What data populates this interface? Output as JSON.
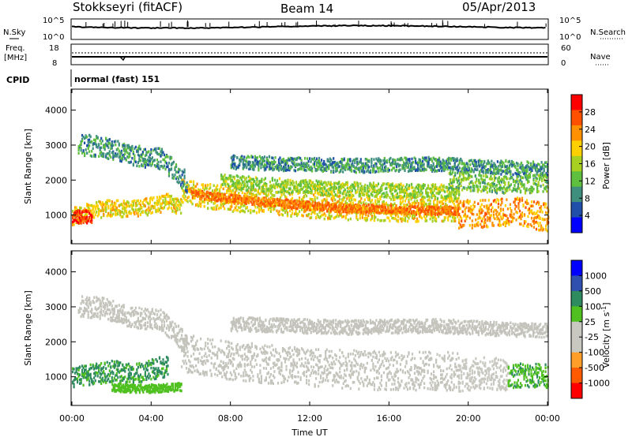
{
  "header": {
    "station": "Stokkseyri (fitACF)",
    "beam": "Beam 14",
    "date": "05/Apr/2013"
  },
  "noise_panel": {
    "left_label": "N.Sky",
    "right_label": "N.Search",
    "left_ticks": [
      "10^5",
      "10^0"
    ],
    "right_ticks": [
      "10^5",
      "10^0"
    ]
  },
  "freq_panel": {
    "left_label_1": "Freq.",
    "left_label_2": "[MHz]",
    "right_label": "Nave",
    "left_ticks": [
      "18",
      "8"
    ],
    "right_ticks": [
      "60",
      "0"
    ]
  },
  "cpid": {
    "label": "CPID",
    "text": "normal (fast) 151"
  },
  "colors": {
    "power_scale": [
      "#0000ff",
      "#1f4fa8",
      "#3f8f7f",
      "#5fbf3f",
      "#a8d020",
      "#ffd000",
      "#ff9000",
      "#ff5000",
      "#ff0000"
    ],
    "velocity_scale": [
      "#ff0000",
      "#ff5a00",
      "#ff9f2a",
      "#c8c8c0",
      "#c8c8c0",
      "#4fc020",
      "#2e8b5f",
      "#3050b0",
      "#0000ff"
    ],
    "power_band": "#30a060",
    "power_core": "#ff8000",
    "gray_echo": "#c4c4bc"
  },
  "chart_data": [
    {
      "type": "heatmap",
      "name": "power",
      "xlabel": "",
      "ylabel": "Slant Range [km]",
      "xlim": [
        0,
        24
      ],
      "ylim": [
        180,
        4600
      ],
      "yticks": [
        "1000",
        "2000",
        "3000",
        "4000"
      ],
      "ytick_values": [
        1000,
        2000,
        3000,
        4000
      ],
      "colorbar": {
        "label": "Power [dB]",
        "ticks": [
          "4",
          "8",
          "12",
          "16",
          "20",
          "24",
          "28"
        ],
        "tick_values": [
          4,
          8,
          12,
          16,
          20,
          24,
          28
        ],
        "range": [
          0,
          30
        ]
      },
      "bands": [
        {
          "x": [
            0,
            0.3,
            1,
            2,
            3,
            4,
            4.8,
            5.5
          ],
          "range": [
            950,
            1000,
            1100,
            1200,
            1150,
            1250,
            1350,
            1200
          ],
          "width": 250,
          "level": 18
        },
        {
          "x": [
            0,
            0.5,
            1
          ],
          "range": [
            950,
            950,
            950
          ],
          "width": 200,
          "level": 28
        },
        {
          "x": [
            5.5,
            6.5,
            8,
            10,
            12,
            14,
            16,
            18,
            19.5
          ],
          "range": [
            1700,
            1550,
            1450,
            1350,
            1250,
            1200,
            1150,
            1150,
            1150
          ],
          "width": 350,
          "level": 18
        },
        {
          "x": [
            6,
            8,
            10,
            12,
            14,
            16,
            18,
            19.5
          ],
          "range": [
            1600,
            1450,
            1350,
            1250,
            1180,
            1150,
            1120,
            1120
          ],
          "width": 120,
          "level": 24
        },
        {
          "x": [
            19.5,
            21,
            22.5,
            24
          ],
          "range": [
            1000,
            1050,
            1100,
            900
          ],
          "width": 400,
          "level": 22
        },
        {
          "x": [
            0.3,
            1.5,
            3,
            4.5,
            5.8
          ],
          "range": [
            3000,
            2950,
            2700,
            2600,
            1900
          ],
          "width": 300,
          "level": 8
        },
        {
          "x": [
            8,
            11,
            14,
            18,
            20,
            24
          ],
          "range": [
            2500,
            2450,
            2400,
            2450,
            2400,
            2300
          ],
          "width": 200,
          "level": 8
        },
        {
          "x": [
            7.5,
            10,
            13,
            16,
            19.5
          ],
          "range": [
            1950,
            1850,
            1750,
            1700,
            1650
          ],
          "width": 200,
          "level": 14
        },
        {
          "x": [
            19,
            20.5,
            22,
            24
          ],
          "range": [
            2000,
            1900,
            1850,
            1900
          ],
          "width": 250,
          "level": 12
        }
      ]
    },
    {
      "type": "heatmap",
      "name": "velocity",
      "xlabel": "Time UT",
      "ylabel": "Slant Range [km]",
      "xlim": [
        0,
        24
      ],
      "ylim": [
        180,
        4600
      ],
      "xticks": [
        "00:00",
        "04:00",
        "08:00",
        "12:00",
        "16:00",
        "20:00",
        "00:00"
      ],
      "xtick_values": [
        0,
        4,
        8,
        12,
        16,
        20,
        24
      ],
      "yticks": [
        "1000",
        "2000",
        "3000",
        "4000"
      ],
      "ytick_values": [
        1000,
        2000,
        3000,
        4000
      ],
      "colorbar": {
        "label": "Velocity [m s^-1]",
        "ticks": [
          "1000",
          "500",
          "100",
          "25",
          "-25",
          "-100",
          "-500",
          "-1000"
        ],
        "range": [
          -1000,
          1000
        ]
      },
      "bands": [
        {
          "x": [
            5.5,
            6.5,
            8,
            10,
            12,
            14,
            16,
            18,
            19.5
          ],
          "range": [
            1700,
            1550,
            1450,
            1350,
            1250,
            1200,
            1150,
            1150,
            1150
          ],
          "width": 550,
          "level": 0
        },
        {
          "x": [
            0.3,
            1.5,
            3,
            4.5,
            5.8
          ],
          "range": [
            3000,
            2950,
            2700,
            2600,
            1900
          ],
          "width": 300,
          "level": 0
        },
        {
          "x": [
            8,
            11,
            14,
            18,
            20,
            24
          ],
          "range": [
            2500,
            2450,
            2400,
            2450,
            2400,
            2300
          ],
          "width": 200,
          "level": 0
        },
        {
          "x": [
            0,
            1,
            2,
            3,
            4,
            4.8
          ],
          "range": [
            1000,
            1050,
            1150,
            1100,
            1200,
            1300
          ],
          "width": 300,
          "level": 400
        },
        {
          "x": [
            2,
            3,
            4,
            5.5
          ],
          "range": [
            700,
            650,
            650,
            700
          ],
          "width": 120,
          "level": 200
        },
        {
          "x": [
            19.5,
            20.5,
            22
          ],
          "range": [
            1000,
            1100,
            1050
          ],
          "width": 450,
          "level": -300
        },
        {
          "x": [
            22,
            23,
            24
          ],
          "range": [
            1000,
            1050,
            1000
          ],
          "width": 350,
          "level": 350
        }
      ]
    }
  ]
}
